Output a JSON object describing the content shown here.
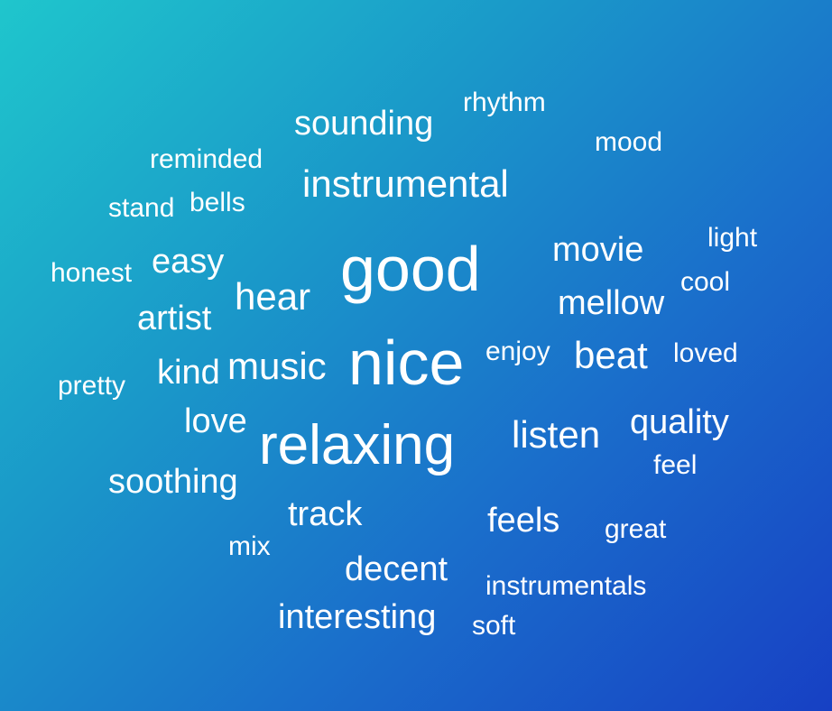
{
  "cloud": {
    "text_color": "#ffffff",
    "background_gradient": [
      "#1fc6cc",
      "#1a98c9",
      "#1a6ecb",
      "#1740c4"
    ],
    "words": [
      "good",
      "nice",
      "relaxing",
      "instrumental",
      "sounding",
      "rhythm",
      "mood",
      "reminded",
      "stand",
      "bells",
      "honest",
      "easy",
      "hear",
      "artist",
      "movie",
      "light",
      "cool",
      "mellow",
      "music",
      "kind",
      "enjoy",
      "beat",
      "loved",
      "pretty",
      "love",
      "listen",
      "quality",
      "feel",
      "soothing",
      "track",
      "feels",
      "great",
      "mix",
      "decent",
      "instrumentals",
      "interesting",
      "soft"
    ]
  }
}
